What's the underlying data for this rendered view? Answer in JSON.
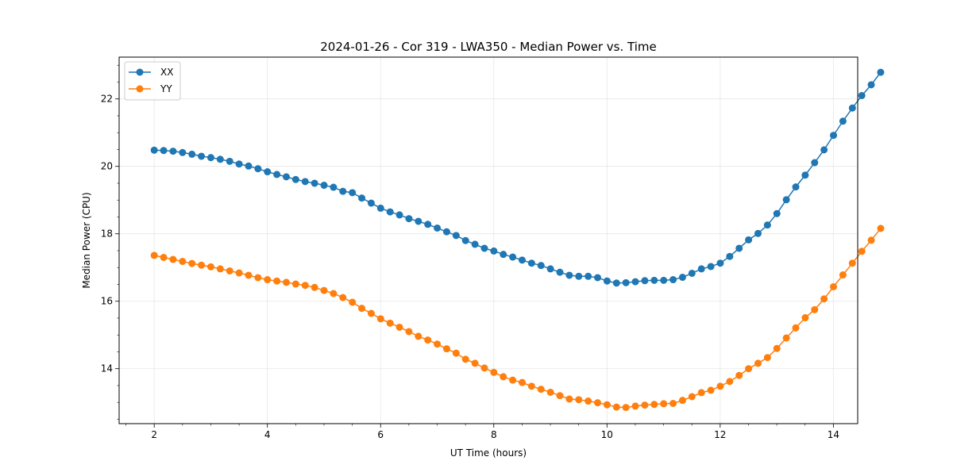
{
  "chart_data": {
    "type": "line",
    "title": "2024-01-26 - Cor 319 - LWA350 - Median Power vs. Time",
    "xlabel": "UT Time (hours)",
    "ylabel": "Median Power (CPU)",
    "xlim": [
      1.38,
      14.43
    ],
    "ylim": [
      12.37,
      23.24
    ],
    "xticks": [
      2,
      4,
      6,
      8,
      10,
      12,
      14
    ],
    "yticks": [
      14,
      16,
      18,
      20,
      22
    ],
    "grid": true,
    "legend_position": "top-left",
    "x_start": 2.0,
    "x_step": 0.1667,
    "series": [
      {
        "name": "XX",
        "color": "#1f77b4",
        "values": [
          20.48,
          20.47,
          20.45,
          20.41,
          20.36,
          20.3,
          20.26,
          20.21,
          20.15,
          20.07,
          20.01,
          19.93,
          19.84,
          19.76,
          19.69,
          19.61,
          19.55,
          19.5,
          19.44,
          19.38,
          19.26,
          19.22,
          19.06,
          18.91,
          18.76,
          18.65,
          18.56,
          18.45,
          18.37,
          18.28,
          18.17,
          18.06,
          17.95,
          17.8,
          17.69,
          17.57,
          17.49,
          17.39,
          17.31,
          17.22,
          17.13,
          17.06,
          16.96,
          16.86,
          16.77,
          16.74,
          16.74,
          16.7,
          16.6,
          16.54,
          16.55,
          16.58,
          16.61,
          16.62,
          16.62,
          16.64,
          16.71,
          16.83,
          16.96,
          17.03,
          17.13,
          17.33,
          17.57,
          17.82,
          18.01,
          18.26,
          18.6,
          19.01,
          19.39,
          19.74,
          20.11,
          20.49,
          20.92,
          21.34,
          21.73,
          22.1,
          22.42,
          22.79
        ]
      },
      {
        "name": "YY",
        "color": "#ff7f0e",
        "values": [
          17.36,
          17.3,
          17.24,
          17.18,
          17.12,
          17.07,
          17.02,
          16.96,
          16.9,
          16.84,
          16.77,
          16.7,
          16.64,
          16.6,
          16.56,
          16.51,
          16.47,
          16.41,
          16.32,
          16.23,
          16.11,
          15.97,
          15.79,
          15.64,
          15.48,
          15.35,
          15.23,
          15.1,
          14.96,
          14.85,
          14.73,
          14.59,
          14.46,
          14.28,
          14.16,
          14.02,
          13.89,
          13.76,
          13.66,
          13.59,
          13.48,
          13.39,
          13.3,
          13.2,
          13.1,
          13.08,
          13.04,
          12.99,
          12.93,
          12.86,
          12.85,
          12.89,
          12.92,
          12.94,
          12.96,
          12.97,
          13.06,
          13.17,
          13.29,
          13.36,
          13.48,
          13.62,
          13.8,
          14.0,
          14.16,
          14.33,
          14.6,
          14.91,
          15.21,
          15.51,
          15.75,
          16.07,
          16.43,
          16.78,
          17.13,
          17.48,
          17.81,
          18.16
        ]
      }
    ]
  }
}
